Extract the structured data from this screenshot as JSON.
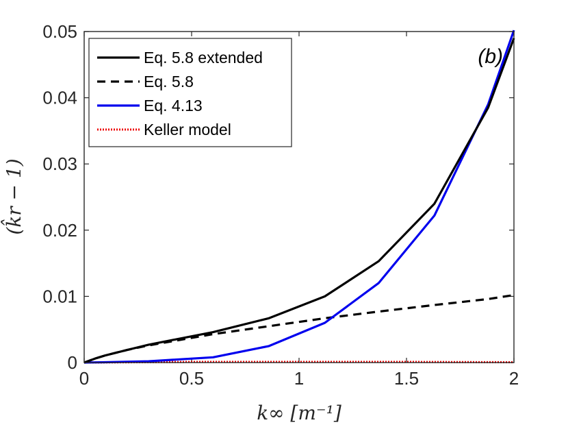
{
  "chart_data": {
    "type": "line",
    "title": "",
    "panel_label": "(b)",
    "xlabel": "k∞ [m⁻¹]",
    "ylabel": "(k̂r − 1)",
    "xlim": [
      0,
      2
    ],
    "ylim": [
      0,
      0.05
    ],
    "xticks": [
      0,
      0.5,
      1,
      1.5,
      2
    ],
    "xtick_labels": [
      "0",
      "0.5",
      "1",
      "1.5",
      "2"
    ],
    "yticks": [
      0,
      0.01,
      0.02,
      0.03,
      0.04,
      0.05
    ],
    "ytick_labels": [
      "0",
      "0.01",
      "0.02",
      "0.03",
      "0.04",
      "0.05"
    ],
    "grid": false,
    "legend_position": "top-left",
    "series": [
      {
        "name": "Eq. 5.8 extended",
        "color": "#000000",
        "style": "solid",
        "x": [
          0,
          0.05,
          0.1,
          0.2,
          0.3,
          0.6,
          0.86,
          1.12,
          1.37,
          1.63,
          1.88,
          2.0
        ],
        "y": [
          0,
          0.0006,
          0.0011,
          0.0019,
          0.0027,
          0.0046,
          0.0067,
          0.01,
          0.0153,
          0.024,
          0.0385,
          0.049
        ]
      },
      {
        "name": "Eq. 5.8",
        "color": "#000000",
        "style": "dashed",
        "x": [
          0,
          0.05,
          0.1,
          0.2,
          0.3,
          0.6,
          0.86,
          1.12,
          1.37,
          1.63,
          1.88,
          2.0
        ],
        "y": [
          0,
          0.0006,
          0.0011,
          0.0019,
          0.0026,
          0.0043,
          0.0055,
          0.0067,
          0.0077,
          0.0087,
          0.0096,
          0.0102
        ]
      },
      {
        "name": "Eq. 4.13",
        "color": "#0000ee",
        "style": "solid",
        "x": [
          0,
          0.1,
          0.3,
          0.6,
          0.86,
          1.12,
          1.37,
          1.63,
          1.88,
          2.0
        ],
        "y": [
          0,
          5e-05,
          0.0002,
          0.0008,
          0.0025,
          0.006,
          0.012,
          0.0222,
          0.039,
          0.0502
        ]
      },
      {
        "name": "Keller model",
        "color": "#ee0000",
        "style": "dotted",
        "x": [
          0,
          0.5,
          1.0,
          1.5,
          2.0
        ],
        "y": [
          0,
          0.0001,
          0.0001,
          0.0001,
          5e-05
        ]
      }
    ]
  }
}
